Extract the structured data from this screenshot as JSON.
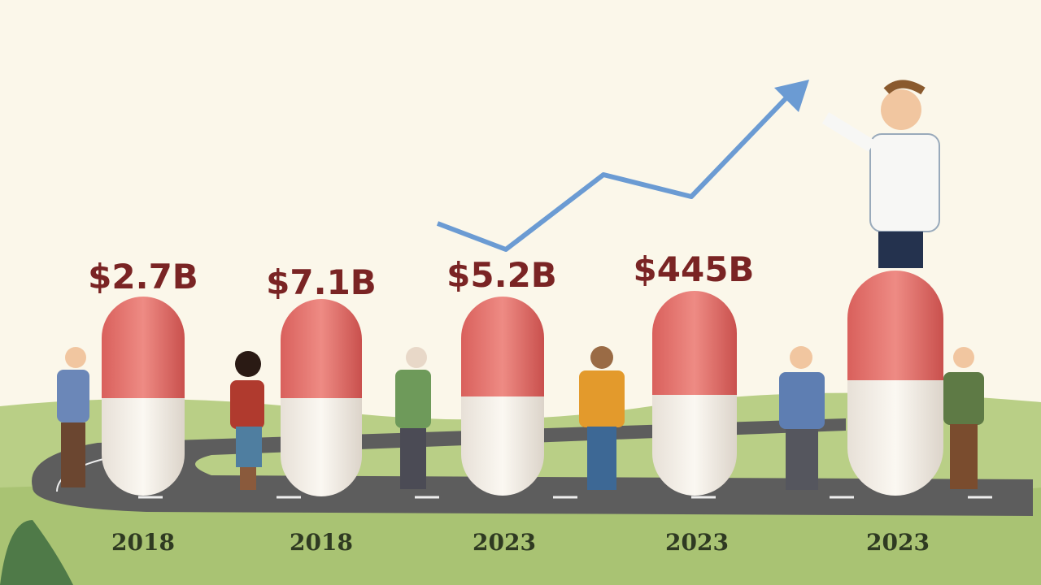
{
  "items": [
    {
      "value_label": "$2.7B",
      "year": "2018"
    },
    {
      "value_label": "$7.1B",
      "year": "2018"
    },
    {
      "value_label": "$5.2B",
      "year": "2023"
    },
    {
      "value_label": "$445B",
      "year": "2023"
    },
    {
      "year": "2023"
    }
  ]
}
